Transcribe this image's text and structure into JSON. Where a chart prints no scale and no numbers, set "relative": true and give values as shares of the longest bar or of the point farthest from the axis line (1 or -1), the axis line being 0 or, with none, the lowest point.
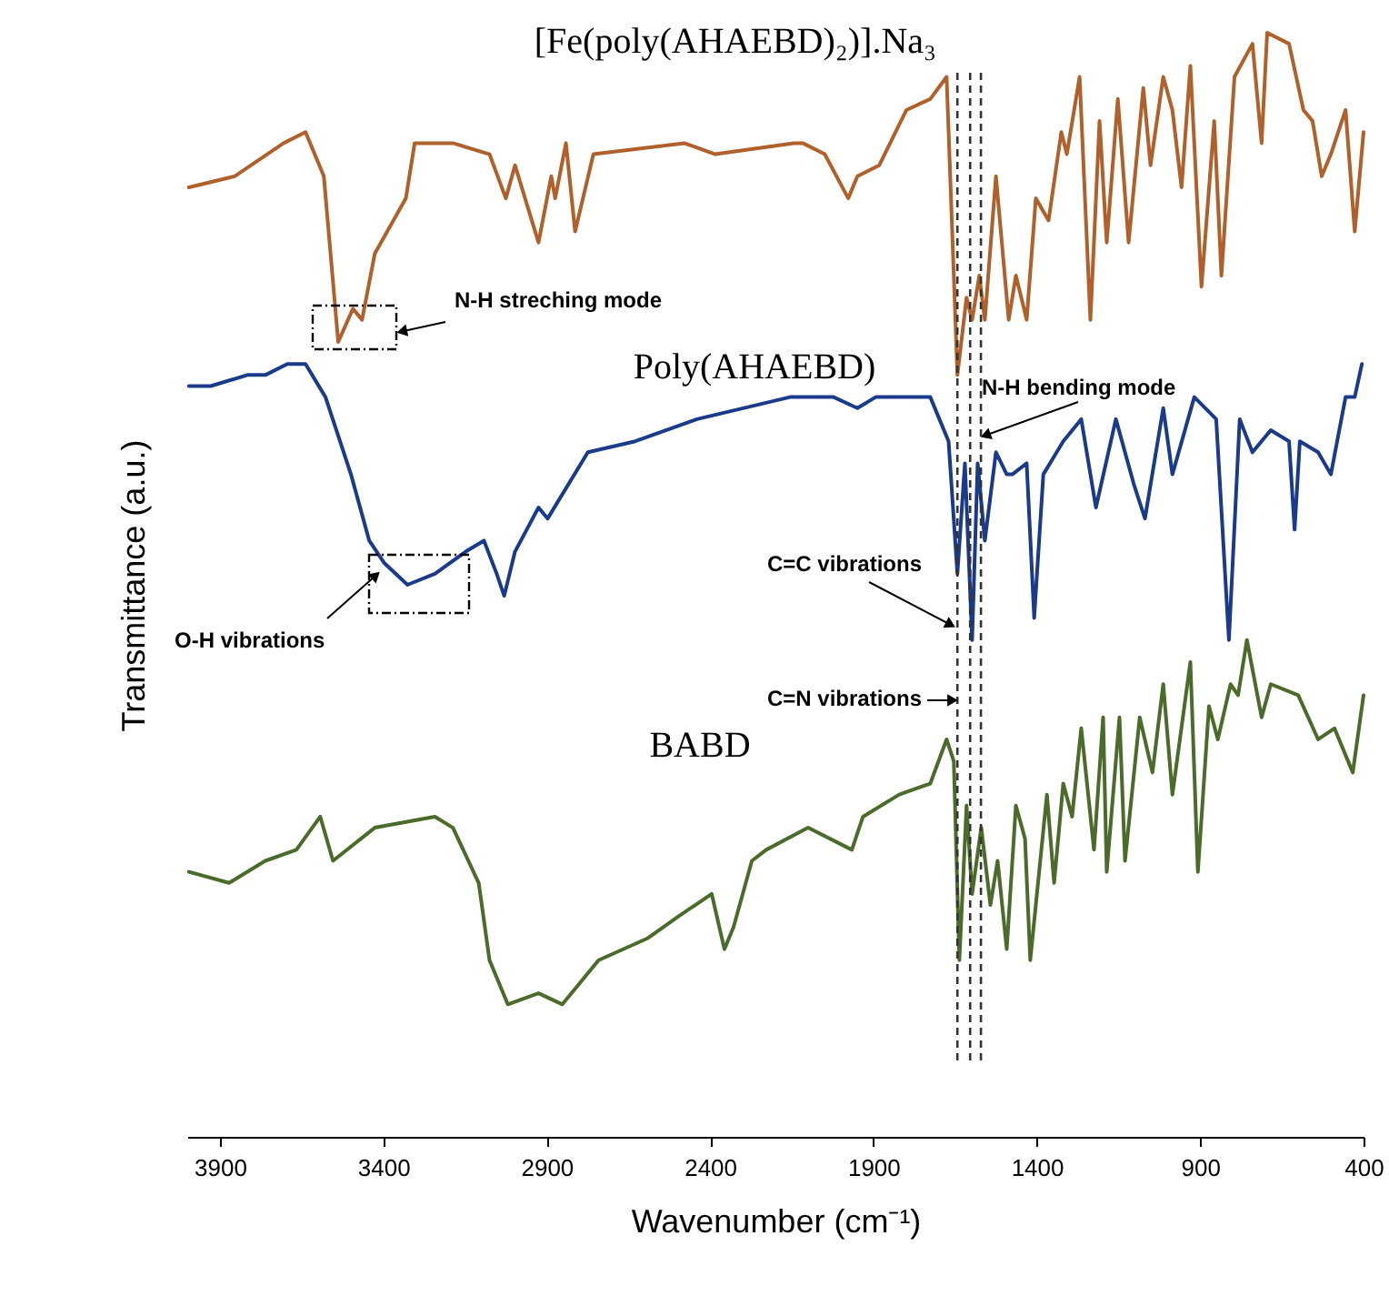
{
  "chart_data": {
    "type": "line",
    "relative": true,
    "xlabel": "Wavenumber (cm⁻¹)",
    "ylabel": "Transmittance (a.u.)",
    "xlim": [
      4000,
      400
    ],
    "xticks": [
      3900,
      3400,
      2900,
      2400,
      1900,
      1400,
      900,
      400
    ],
    "grid": false,
    "marker": "none",
    "line_style": "solid",
    "tick_labels": "x",
    "series": [
      {
        "name": "[Fe(poly(AHAEBD)₂)].Na₃",
        "color": "#b0602a",
        "x": [
          3995,
          3855,
          3705,
          3638,
          3582,
          3538,
          3493,
          3465,
          3426,
          3331,
          3304,
          3187,
          3075,
          3025,
          2997,
          2925,
          2886,
          2874,
          2841,
          2813,
          2757,
          2479,
          2384,
          2144,
          2116,
          2049,
          1977,
          1949,
          1882,
          1799,
          1726,
          1676,
          1643,
          1615,
          1598,
          1576,
          1559,
          1525,
          1486,
          1464,
          1431,
          1403,
          1364,
          1325,
          1308,
          1269,
          1236,
          1208,
          1186,
          1152,
          1119,
          1074,
          1052,
          1013,
          985,
          957,
          930,
          896,
          857,
          835,
          795,
          740,
          712,
          695,
          628,
          584,
          556,
          528,
          500,
          455,
          427,
          400
        ],
        "values": [
          0.86,
          0.87,
          0.9,
          0.91,
          0.87,
          0.72,
          0.75,
          0.74,
          0.8,
          0.85,
          0.9,
          0.9,
          0.89,
          0.85,
          0.88,
          0.81,
          0.87,
          0.85,
          0.9,
          0.82,
          0.89,
          0.9,
          0.89,
          0.9,
          0.9,
          0.89,
          0.85,
          0.87,
          0.88,
          0.93,
          0.94,
          0.96,
          0.69,
          0.76,
          0.74,
          0.78,
          0.74,
          0.87,
          0.74,
          0.78,
          0.74,
          0.85,
          0.83,
          0.91,
          0.89,
          0.96,
          0.74,
          0.92,
          0.81,
          0.94,
          0.81,
          0.95,
          0.88,
          0.96,
          0.93,
          0.86,
          0.97,
          0.77,
          0.92,
          0.78,
          0.96,
          0.99,
          0.9,
          1.0,
          0.99,
          0.93,
          0.92,
          0.87,
          0.89,
          0.93,
          0.82,
          0.91
        ]
      },
      {
        "name": "Poly(AHAEBD)",
        "color": "#1a3a8a",
        "x": [
          3995,
          3928,
          3816,
          3761,
          3694,
          3638,
          3577,
          3499,
          3443,
          3398,
          3326,
          3242,
          3148,
          3092,
          3053,
          3030,
          2997,
          2925,
          2897,
          2774,
          2629,
          2440,
          2155,
          2022,
          1949,
          1893,
          1765,
          1726,
          1670,
          1643,
          1620,
          1598,
          1581,
          1559,
          1525,
          1492,
          1475,
          1431,
          1408,
          1380,
          1319,
          1264,
          1219,
          1158,
          1102,
          1069,
          1013,
          985,
          918,
          851,
          812,
          779,
          740,
          684,
          628,
          611,
          595,
          539,
          500,
          455,
          427,
          405
        ],
        "values": [
          0.68,
          0.68,
          0.69,
          0.69,
          0.7,
          0.7,
          0.67,
          0.6,
          0.54,
          0.52,
          0.5,
          0.51,
          0.53,
          0.54,
          0.51,
          0.49,
          0.53,
          0.57,
          0.56,
          0.62,
          0.63,
          0.65,
          0.67,
          0.67,
          0.66,
          0.67,
          0.67,
          0.67,
          0.63,
          0.51,
          0.61,
          0.45,
          0.61,
          0.54,
          0.62,
          0.6,
          0.6,
          0.61,
          0.47,
          0.6,
          0.63,
          0.65,
          0.57,
          0.65,
          0.59,
          0.56,
          0.66,
          0.6,
          0.67,
          0.65,
          0.45,
          0.65,
          0.62,
          0.64,
          0.63,
          0.55,
          0.63,
          0.62,
          0.6,
          0.67,
          0.67,
          0.7
        ]
      },
      {
        "name": "BABD",
        "color": "#4b6b2b",
        "x": [
          3995,
          3872,
          3761,
          3666,
          3593,
          3554,
          3426,
          3242,
          3187,
          3108,
          3075,
          3019,
          2925,
          2852,
          2741,
          2590,
          2495,
          2395,
          2356,
          2328,
          2272,
          2228,
          2100,
          1966,
          1932,
          1821,
          1726,
          1676,
          1654,
          1637,
          1615,
          1598,
          1570,
          1542,
          1520,
          1492,
          1464,
          1436,
          1420,
          1369,
          1347,
          1319,
          1292,
          1264,
          1225,
          1197,
          1186,
          1147,
          1130,
          1085,
          1046,
          1013,
          985,
          930,
          907,
          873,
          846,
          807,
          784,
          757,
          712,
          684,
          600,
          539,
          489,
          433,
          400
        ],
        "values": [
          0.24,
          0.23,
          0.25,
          0.26,
          0.29,
          0.25,
          0.28,
          0.29,
          0.28,
          0.23,
          0.16,
          0.12,
          0.13,
          0.12,
          0.16,
          0.18,
          0.2,
          0.22,
          0.17,
          0.19,
          0.25,
          0.26,
          0.28,
          0.26,
          0.29,
          0.31,
          0.32,
          0.36,
          0.34,
          0.16,
          0.3,
          0.22,
          0.28,
          0.21,
          0.25,
          0.17,
          0.3,
          0.27,
          0.16,
          0.31,
          0.23,
          0.32,
          0.29,
          0.37,
          0.26,
          0.38,
          0.24,
          0.38,
          0.25,
          0.38,
          0.33,
          0.41,
          0.31,
          0.43,
          0.24,
          0.39,
          0.36,
          0.41,
          0.4,
          0.45,
          0.38,
          0.41,
          0.4,
          0.36,
          0.37,
          0.33,
          0.4
        ]
      }
    ],
    "ref_lines": [
      {
        "axis": "x",
        "value": 1643,
        "line_style": "dashed",
        "color": "#333333"
      },
      {
        "axis": "x",
        "value": 1604,
        "line_style": "dashed",
        "color": "#333333"
      },
      {
        "axis": "x",
        "value": 1571,
        "line_style": "dashed",
        "color": "#333333"
      }
    ],
    "annotations": [
      "N-H streching mode",
      "O-H vibrations",
      "C=C vibrations",
      "C=N vibrations",
      "N-H bending mode"
    ]
  }
}
